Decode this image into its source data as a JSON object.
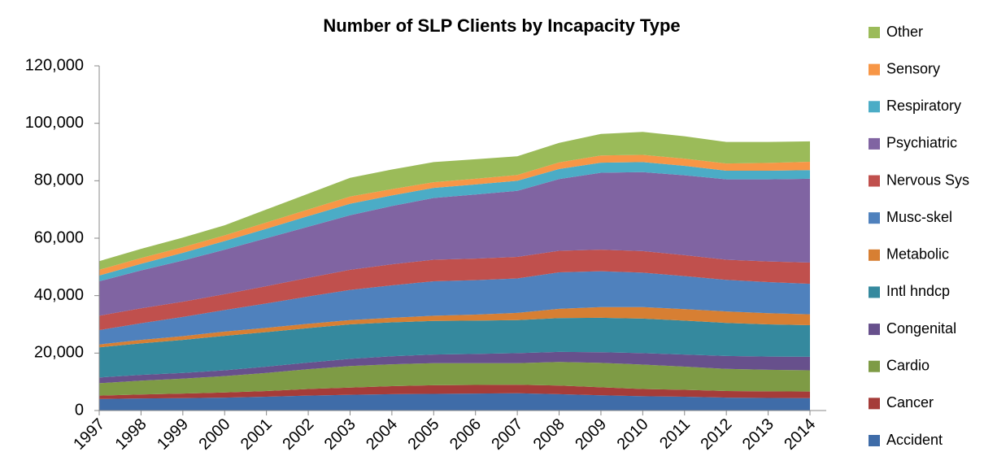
{
  "chart_data": {
    "type": "stacked-area",
    "title": "Number of SLP Clients by Incapacity Type",
    "categories": [
      "1997",
      "1998",
      "1999",
      "2000",
      "2001",
      "2002",
      "2003",
      "2004",
      "2005",
      "2006",
      "2007",
      "2008",
      "2009",
      "2010",
      "2011",
      "2012",
      "2013",
      "2014"
    ],
    "ylim": [
      0,
      120000
    ],
    "yticks": [
      0,
      {
        "value": 20000,
        "label": "20,000"
      },
      {
        "value": 40000,
        "label": "40,000"
      },
      {
        "value": 60000,
        "label": "60,000"
      },
      {
        "value": 80000,
        "label": "80,000"
      },
      {
        "value": 100000,
        "label": "100,000"
      },
      {
        "value": 120000,
        "label": "120,000"
      }
    ],
    "legend": "right",
    "series": [
      {
        "name": "Accident",
        "color": "#3f6ca8",
        "values": [
          4000,
          4200,
          4300,
          4500,
          4800,
          5200,
          5500,
          5700,
          5800,
          5900,
          6000,
          5700,
          5300,
          5000,
          4800,
          4500,
          4400,
          4300
        ]
      },
      {
        "name": "Cancer",
        "color": "#a53c39",
        "values": [
          1200,
          1400,
          1600,
          1800,
          2000,
          2300,
          2500,
          2800,
          3000,
          3000,
          3000,
          3000,
          2800,
          2500,
          2400,
          2300,
          2300,
          2300
        ]
      },
      {
        "name": "Cardio",
        "color": "#7e9b45",
        "values": [
          4300,
          4800,
          5200,
          5700,
          6300,
          6900,
          7500,
          7600,
          7700,
          7600,
          7500,
          8200,
          8500,
          8500,
          8100,
          7700,
          7500,
          7400
        ]
      },
      {
        "name": "Congenital",
        "color": "#67508c",
        "values": [
          2000,
          2000,
          2000,
          2000,
          2200,
          2300,
          2500,
          2800,
          3000,
          3200,
          3500,
          3500,
          3700,
          4000,
          4200,
          4500,
          4600,
          4700
        ]
      },
      {
        "name": "Intl hndcp",
        "color": "#35899e",
        "values": [
          10500,
          11000,
          11500,
          12000,
          12000,
          12000,
          12000,
          11800,
          11700,
          11600,
          11500,
          11800,
          12000,
          12000,
          11800,
          11500,
          11200,
          11000
        ]
      },
      {
        "name": "Metabolic",
        "color": "#d77f33",
        "values": [
          1000,
          1200,
          1300,
          1500,
          1500,
          1500,
          1500,
          1600,
          1800,
          2100,
          2500,
          3200,
          3700,
          4000,
          4000,
          4000,
          3900,
          3800
        ]
      },
      {
        "name": "Musc-skel",
        "color": "#4f81bd",
        "values": [
          5000,
          5800,
          6700,
          7500,
          8500,
          9500,
          10500,
          11300,
          12000,
          12000,
          12000,
          12700,
          12500,
          12000,
          11500,
          11000,
          10800,
          10600
        ]
      },
      {
        "name": "Nervous Sys",
        "color": "#c0504d",
        "values": [
          5000,
          5200,
          5300,
          5500,
          6000,
          6500,
          7000,
          7300,
          7500,
          7500,
          7500,
          7500,
          7500,
          7500,
          7300,
          7000,
          7200,
          7400
        ]
      },
      {
        "name": "Psychiatric",
        "color": "#8064a2",
        "values": [
          12000,
          13200,
          14300,
          15500,
          16700,
          17800,
          19000,
          20300,
          21500,
          22300,
          23000,
          25000,
          26800,
          27500,
          27800,
          28000,
          28600,
          29200
        ]
      },
      {
        "name": "Respiratory",
        "color": "#4bacc6",
        "values": [
          2000,
          2300,
          2700,
          3000,
          3300,
          3700,
          4000,
          3700,
          3500,
          3500,
          3500,
          3500,
          3500,
          3500,
          3300,
          3000,
          3000,
          3000
        ]
      },
      {
        "name": "Sensory",
        "color": "#f79646",
        "values": [
          2000,
          2000,
          2000,
          2000,
          2200,
          2300,
          2500,
          2200,
          2000,
          2000,
          2000,
          2300,
          2500,
          2500,
          2500,
          2500,
          2700,
          2900
        ]
      },
      {
        "name": "Other",
        "color": "#9bbb59",
        "values": [
          3000,
          3200,
          3300,
          3500,
          4500,
          5500,
          6500,
          6800,
          7000,
          6800,
          6500,
          6800,
          7500,
          8000,
          7800,
          7500,
          7300,
          7100
        ]
      }
    ]
  }
}
